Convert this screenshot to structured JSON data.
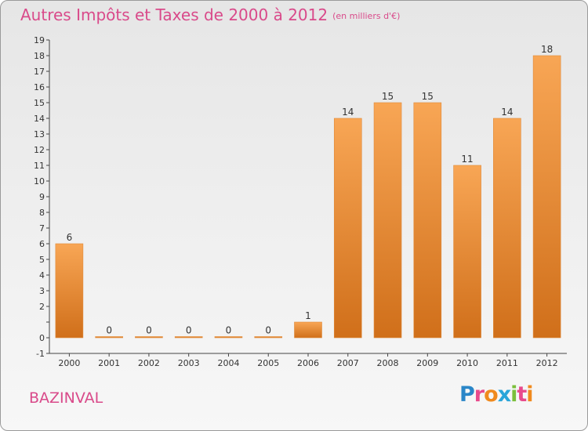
{
  "title": "Autres Impôts et Taxes de 2000 à 2012",
  "subtitle": "(en milliers d'€)",
  "commune": "BAZINVAL",
  "logo": {
    "letters": [
      "P",
      "r",
      "o",
      "x",
      "i",
      "t",
      "i"
    ],
    "colors": [
      "#2a86c8",
      "#e84a8c",
      "#f08a1e",
      "#2aa5d9",
      "#7bbf3b",
      "#e84a8c",
      "#f08a1e"
    ]
  },
  "colors": {
    "bar_top": "#f8a655",
    "bar_bottom": "#d06f1a",
    "title": "#d94a8a"
  },
  "chart_data": {
    "type": "bar",
    "categories": [
      "2000",
      "2001",
      "2002",
      "2003",
      "2004",
      "2005",
      "2006",
      "2007",
      "2008",
      "2009",
      "2010",
      "2011",
      "2012"
    ],
    "values": [
      6,
      0,
      0,
      0,
      0,
      0,
      1,
      14,
      15,
      15,
      11,
      14,
      18
    ],
    "data_labels": [
      "6",
      "0",
      "0",
      "0",
      "0",
      "0",
      "1",
      "14",
      "15",
      "15",
      "11",
      "14",
      "18"
    ],
    "y_ticks": [
      "-1",
      "0",
      "",
      "2",
      "3",
      "4",
      "5",
      "6",
      "7",
      "8",
      "9",
      "10",
      "11",
      "12",
      "13",
      "14",
      "15",
      "16",
      "17",
      "18",
      "19"
    ],
    "ylim": [
      -1,
      19
    ],
    "grid": false,
    "legend": "none"
  }
}
